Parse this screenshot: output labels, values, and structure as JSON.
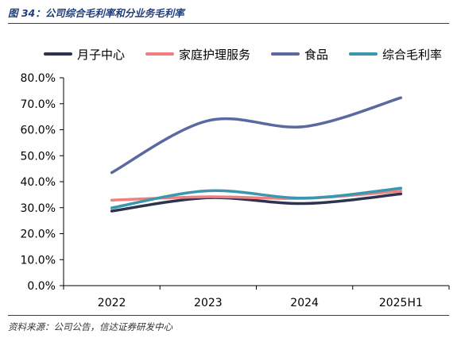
{
  "figure": {
    "title": "图 34：公司综合毛利率和分业务毛利率",
    "source": "资料来源：公司公告，信达证券研发中心"
  },
  "chart_data": {
    "type": "line",
    "categories": [
      "2022",
      "2023",
      "2024",
      "2025H1"
    ],
    "series": [
      {
        "name": "月子中心",
        "color": "#2e3350",
        "values": [
          28.7,
          33.8,
          31.6,
          35.3
        ]
      },
      {
        "name": "家庭护理服务",
        "color": "#f08080",
        "values": [
          32.9,
          34.2,
          33.6,
          36.4
        ]
      },
      {
        "name": "食品",
        "color": "#5a6aa0",
        "values": [
          43.5,
          63.5,
          61.2,
          72.3
        ]
      },
      {
        "name": "综合毛利率",
        "color": "#3a97ad",
        "values": [
          29.9,
          36.5,
          33.7,
          37.5
        ]
      }
    ],
    "yticks": [
      "0.0%",
      "10.0%",
      "20.0%",
      "30.0%",
      "40.0%",
      "50.0%",
      "60.0%",
      "70.0%",
      "80.0%"
    ],
    "ylim": [
      0,
      80
    ],
    "legend_position": "top",
    "grid": false,
    "smooth": true
  }
}
